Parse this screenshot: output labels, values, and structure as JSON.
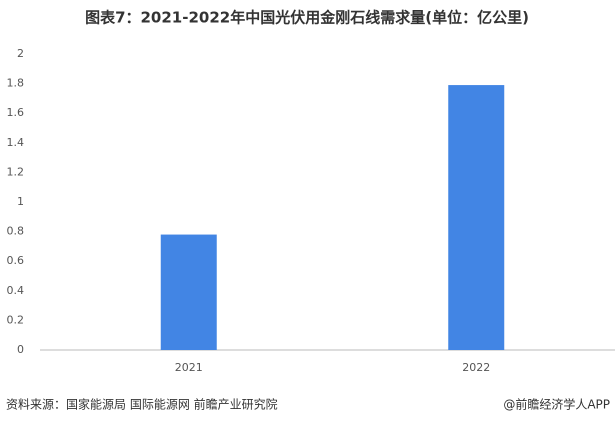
{
  "chart_data": {
    "type": "bar",
    "title": "图表7：2021-2022年中国光伏用金刚石线需求量(单位：亿公里)",
    "categories": [
      "2021",
      "2022"
    ],
    "values": [
      0.78,
      1.79
    ],
    "color": "#4285e4",
    "ylim": [
      0,
      2
    ],
    "yticks": [
      0,
      0.2,
      0.4,
      0.6,
      0.8,
      1,
      1.2,
      1.4,
      1.6,
      1.8,
      2
    ],
    "grid": false,
    "source": "资料来源：国家能源局 国际能源网 前瞻产业研究院",
    "credit": "@前瞻经济学人APP"
  }
}
